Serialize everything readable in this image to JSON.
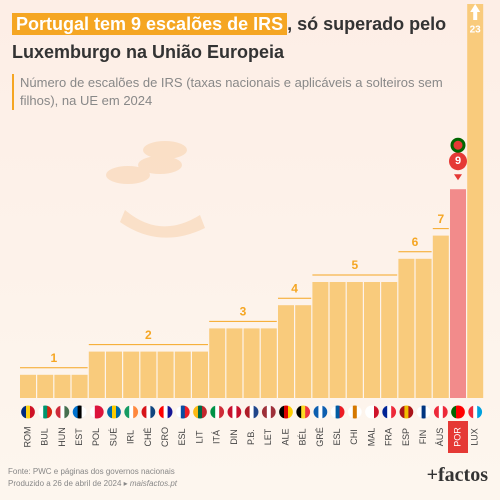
{
  "chart_data": {
    "type": "bar",
    "title_highlight": "Portugal tem 9 escalões de IRS",
    "title": ", só superado pelo Luxemburgo na União Europeia",
    "subtitle": "Número de escalões de IRS (taxas nacionais e aplicáveis a solteiros sem filhos), na UE em 2024",
    "source": "Fonte: PWC e páginas dos governos nacionais",
    "produced": "Produzido a 26 de abril de 2024",
    "site": "maisfactos.pt",
    "logo": "+factos",
    "categories": [
      "ROM",
      "BUL",
      "HUN",
      "EST",
      "POL",
      "SUÉ",
      "IRL",
      "CHÉ",
      "CRO",
      "ESL",
      "LIT",
      "ITÁ",
      "DIN",
      "P.B.",
      "LET",
      "ALE",
      "BÉL",
      "GRÉ",
      "ESL",
      "CHI",
      "MAL",
      "FRA",
      "ESP",
      "FIN",
      "ÁUS",
      "POR",
      "LUX"
    ],
    "values": [
      1,
      1,
      1,
      1,
      2,
      2,
      2,
      2,
      2,
      2,
      2,
      3,
      3,
      3,
      3,
      4,
      4,
      5,
      5,
      5,
      5,
      5,
      6,
      6,
      7,
      9,
      23
    ],
    "colors": [
      "#f9cb7c",
      "#f9cb7c",
      "#f9cb7c",
      "#f9cb7c",
      "#f9cb7c",
      "#f9cb7c",
      "#f9cb7c",
      "#f9cb7c",
      "#f9cb7c",
      "#f9cb7c",
      "#f9cb7c",
      "#f9cb7c",
      "#f9cb7c",
      "#f9cb7c",
      "#f9cb7c",
      "#f9cb7c",
      "#f9cb7c",
      "#f9cb7c",
      "#f9cb7c",
      "#f9cb7c",
      "#f9cb7c",
      "#f9cb7c",
      "#f9cb7c",
      "#f9cb7c",
      "#f9cb7c",
      "#f28b8b",
      "#f9cb7c"
    ]
  }
}
